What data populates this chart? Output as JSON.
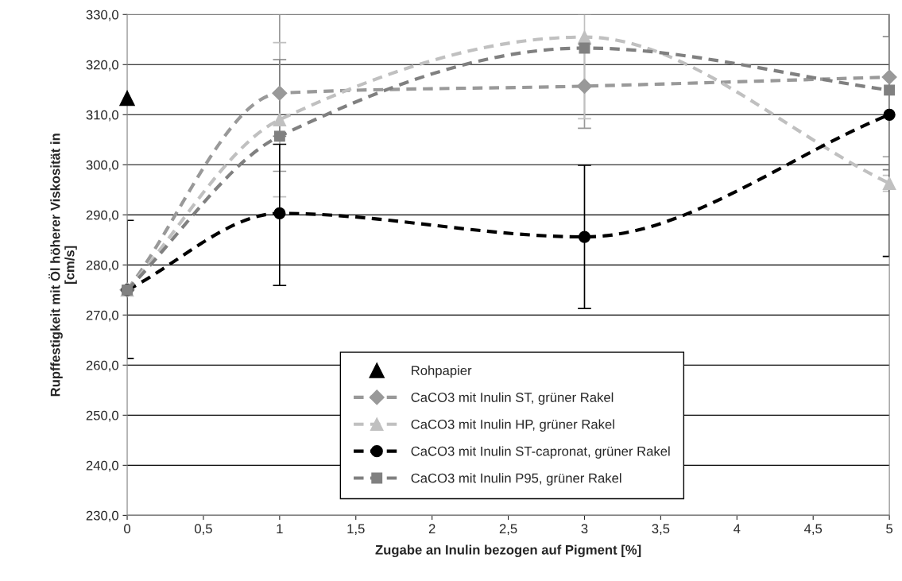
{
  "chart_data": {
    "type": "line",
    "xlabel": "Zugabe an Inulin bezogen auf Pigment [%]",
    "ylabel": "Rupffestigkeit mit Öl höherer Viskosität in\n[cm/s]",
    "xlim": [
      0,
      5
    ],
    "ylim": [
      230,
      330
    ],
    "xticks": [
      0,
      {
        "value": 0.5,
        "label": "0,5"
      },
      1,
      {
        "value": 1.5,
        "label": "1,5"
      },
      2,
      {
        "value": 2.5,
        "label": "2,5"
      },
      3,
      {
        "value": 3.5,
        "label": "3,5"
      },
      4,
      {
        "value": 4.5,
        "label": "4,5"
      },
      5
    ],
    "yticks": [
      {
        "value": 230,
        "label": "230,0"
      },
      {
        "value": 240,
        "label": "240,0"
      },
      {
        "value": 250,
        "label": "250,0"
      },
      {
        "value": 260,
        "label": "260,0"
      },
      {
        "value": 270,
        "label": "270,0"
      },
      {
        "value": 280,
        "label": "280,0"
      },
      {
        "value": 290,
        "label": "290,0"
      },
      {
        "value": 300,
        "label": "300,0"
      },
      {
        "value": 310,
        "label": "310,0"
      },
      {
        "value": 320,
        "label": "320,0"
      },
      {
        "value": 330,
        "label": "330,0"
      }
    ],
    "grid": "y",
    "legend": "bottom",
    "series": [
      {
        "name": "Rohpapier",
        "type": "scatter",
        "color": "#000000",
        "marker": "triangle",
        "x": [
          0
        ],
        "values": [
          313.3
        ]
      },
      {
        "name": "CaCO3 mit Inulin ST, grüner Rakel",
        "color": "#999999",
        "marker": "diamond",
        "line_style": "dashed",
        "x": [
          0,
          1,
          3,
          5
        ],
        "values": [
          275.0,
          314.3,
          315.7,
          317.5
        ],
        "errors": [
          null,
          [
            298.7,
            330.0
          ],
          [
            307.3,
            324.1
          ],
          [
            301.6,
            330.5
          ]
        ]
      },
      {
        "name": "CaCO3 mit Inulin HP, grüner Rakel",
        "color": "#c0c0c0",
        "marker": "triangle",
        "line_style": "dashed",
        "x": [
          0,
          1,
          3,
          5
        ],
        "values": [
          275.0,
          309.0,
          325.5,
          296.3
        ],
        "errors": [
          null,
          [
            293.6,
            324.4
          ],
          [
            309.2,
            330.0
          ],
          [
            294.7,
            297.9
          ]
        ]
      },
      {
        "name": "CaCO3 mit Inulin ST-capronat, grüner Rakel",
        "color": "#000000",
        "marker": "circle",
        "line_style": "dashed",
        "x": [
          0,
          1,
          3,
          5
        ],
        "values": [
          275.0,
          290.3,
          285.6,
          310.0
        ],
        "errors": [
          [
            261.3,
            288.9
          ],
          [
            275.9,
            304.1
          ],
          [
            271.3,
            299.9
          ],
          [
            281.7,
            330.5
          ]
        ]
      },
      {
        "name": "CaCO3 mit Inulin P95, grüner Rakel",
        "color": "#808080",
        "marker": "square",
        "line_style": "dashed",
        "x": [
          0,
          1,
          3,
          5
        ],
        "values": [
          275.0,
          305.7,
          323.3,
          314.9
        ],
        "errors": [
          null,
          [
            305.7,
            321.0
          ],
          null,
          [
            299.0,
            325.6
          ]
        ]
      }
    ]
  }
}
